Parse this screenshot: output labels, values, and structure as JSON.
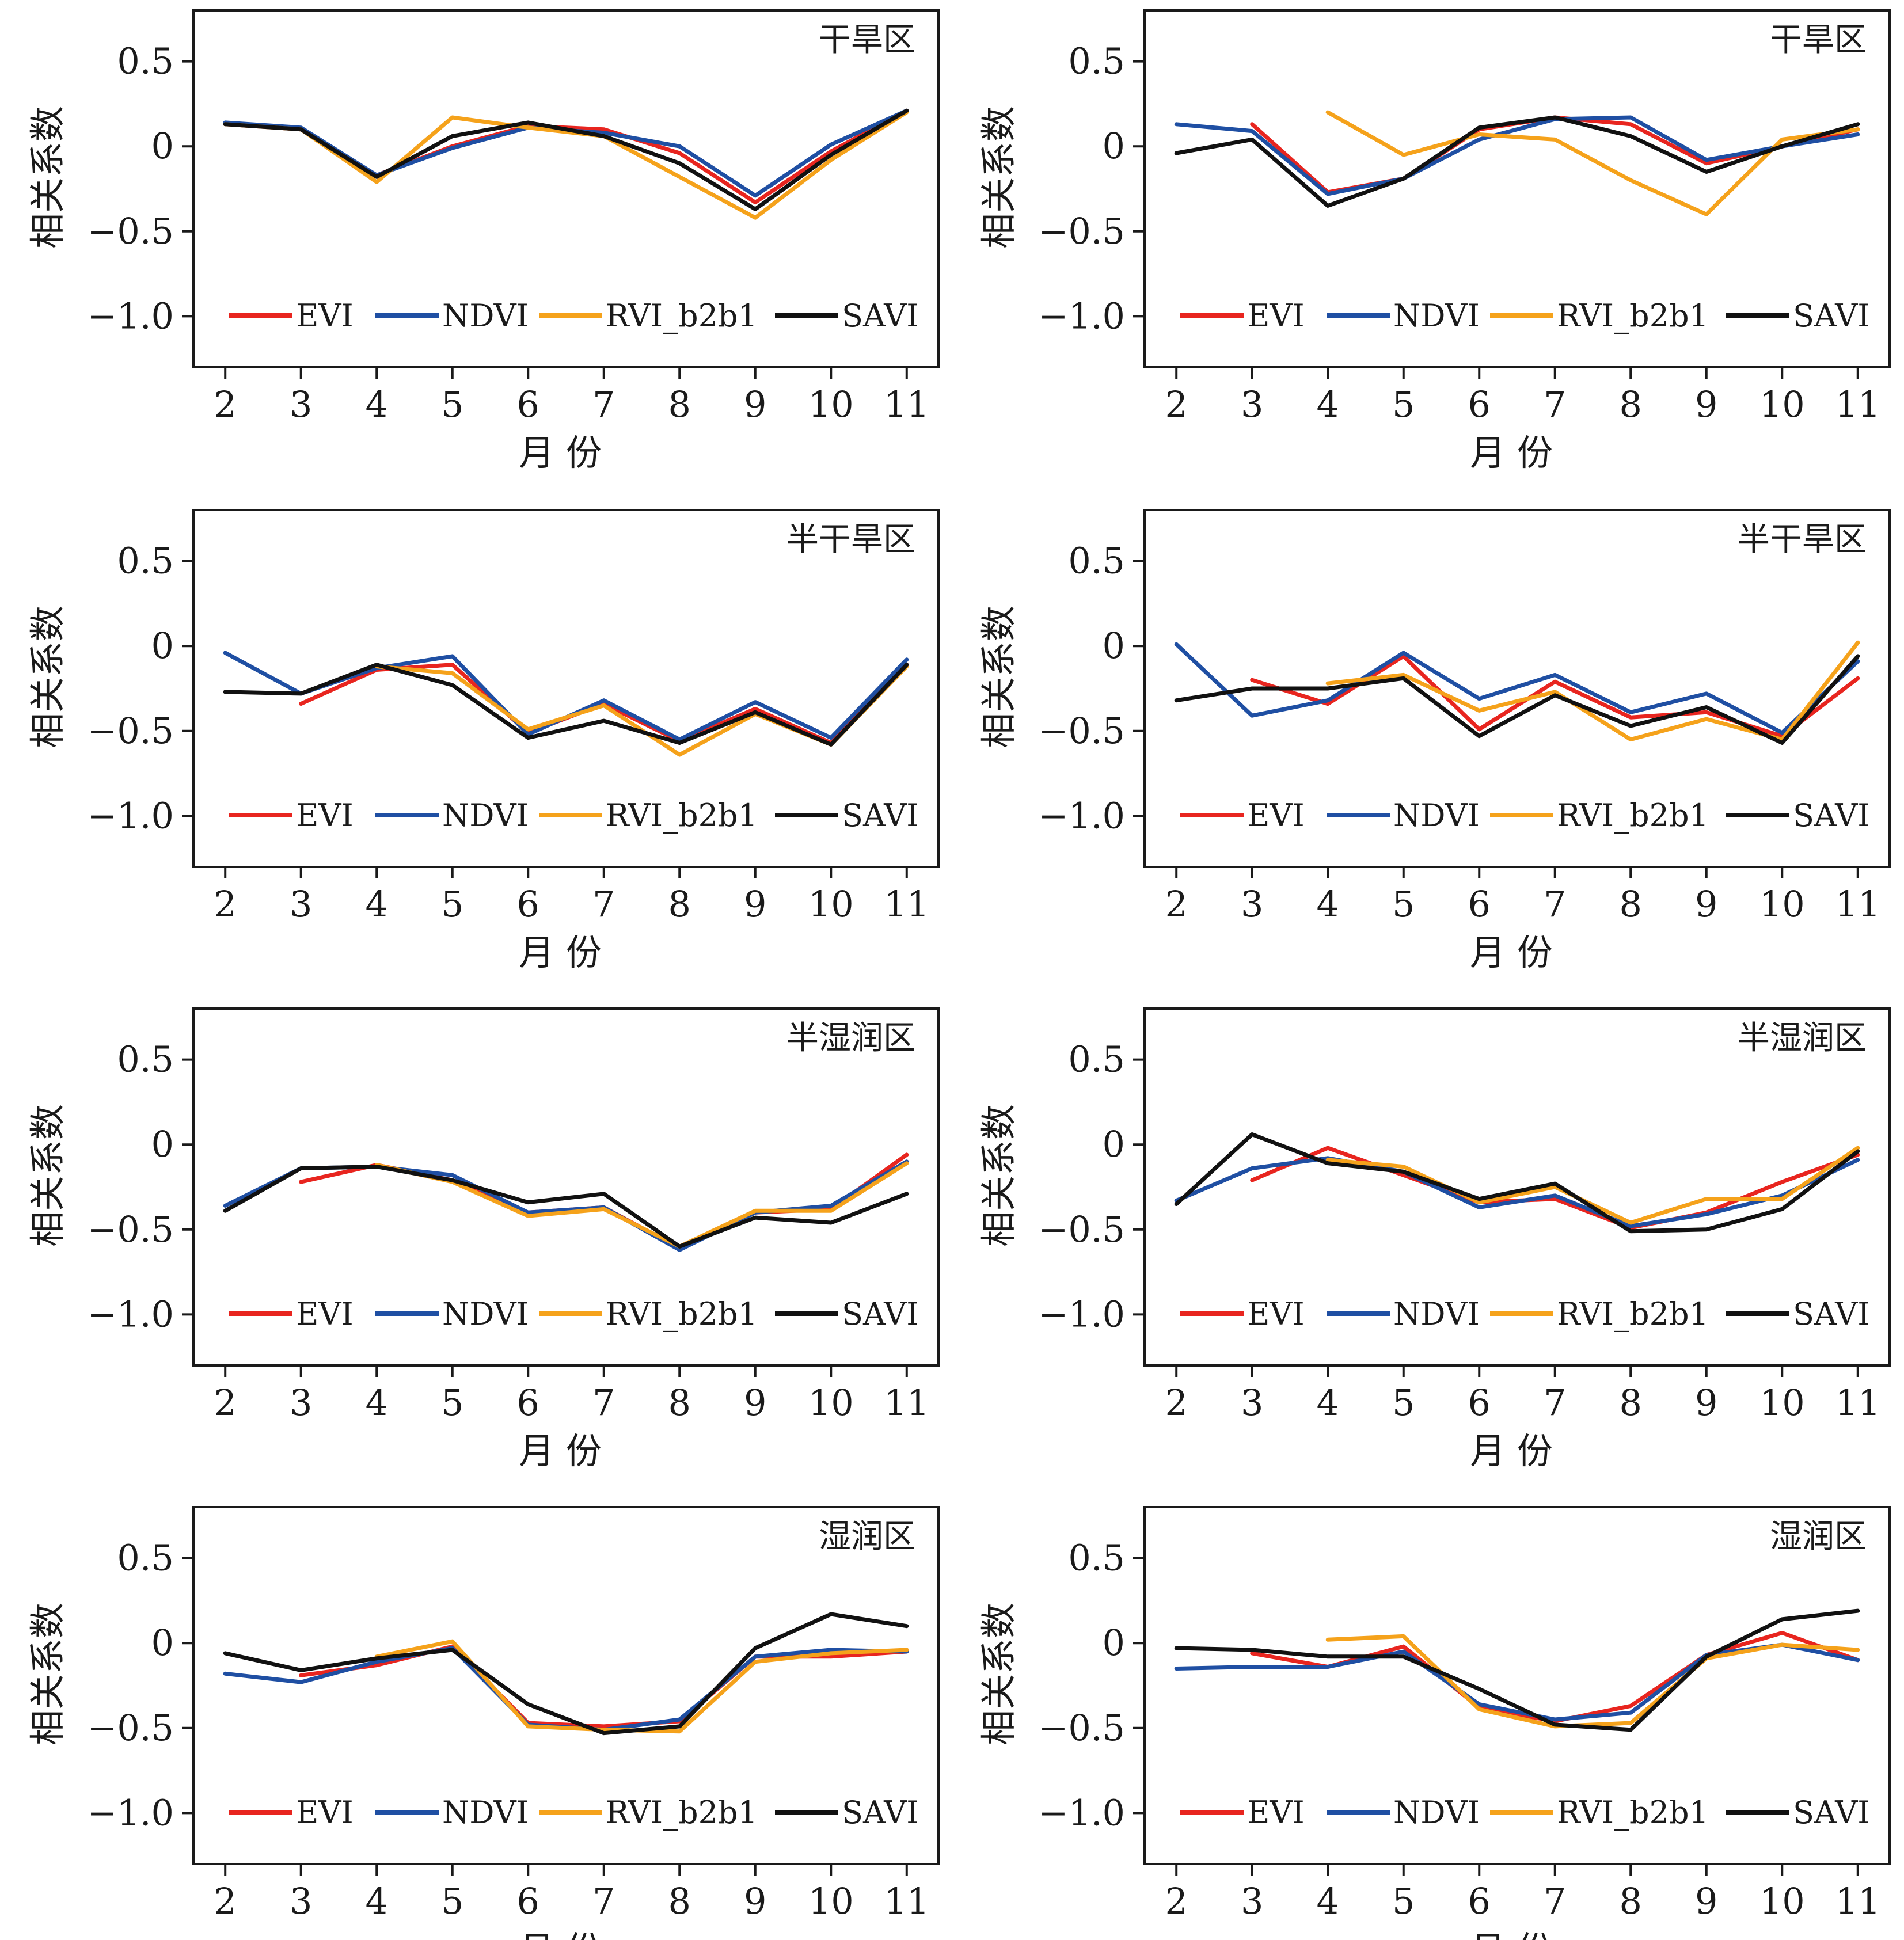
{
  "colors": {
    "EVI": "#e8251f",
    "NDVI": "#1f4fa3",
    "RVI_b2b1": "#f5a21b",
    "SAVI": "#111111"
  },
  "chart_data": [
    {
      "type": "line",
      "title": "干旱区",
      "xlabel": "月 份",
      "ylabel": "相关系数",
      "x": [
        2,
        3,
        4,
        5,
        6,
        7,
        8,
        9,
        10,
        11
      ],
      "ylim": [
        -1.3,
        0.8
      ],
      "yticks": [
        "0.5",
        "0",
        "−0.5",
        "−1.0"
      ],
      "legend": "bottom",
      "series": [
        {
          "name": "EVI",
          "values": [
            0.13,
            0.1,
            -0.17,
            0.0,
            0.12,
            0.1,
            -0.04,
            -0.33,
            -0.03,
            0.21
          ]
        },
        {
          "name": "NDVI",
          "values": [
            0.14,
            0.11,
            -0.17,
            -0.01,
            0.11,
            0.08,
            0.0,
            -0.29,
            0.01,
            0.21
          ]
        },
        {
          "name": "RVI_b2b1",
          "values": [
            0.13,
            0.1,
            -0.21,
            0.17,
            0.11,
            0.06,
            -0.18,
            -0.42,
            -0.08,
            0.2
          ]
        },
        {
          "name": "SAVI",
          "values": [
            0.13,
            0.1,
            -0.18,
            0.06,
            0.14,
            0.06,
            -0.1,
            -0.37,
            -0.05,
            0.21
          ]
        }
      ]
    },
    {
      "type": "line",
      "title": "干旱区",
      "xlabel": "月 份",
      "ylabel": "相关系数",
      "x": [
        2,
        3,
        4,
        5,
        6,
        7,
        8,
        9,
        10,
        11
      ],
      "ylim": [
        -1.3,
        0.8
      ],
      "yticks": [
        "0.5",
        "0",
        "−0.5",
        "−1.0"
      ],
      "legend": "bottom",
      "series": [
        {
          "name": "EVI",
          "values": [
            null,
            0.13,
            -0.27,
            -0.19,
            0.1,
            0.17,
            0.13,
            -0.1,
            0.0,
            0.1
          ]
        },
        {
          "name": "NDVI",
          "values": [
            0.13,
            0.09,
            -0.28,
            -0.19,
            0.04,
            0.16,
            0.17,
            -0.08,
            0.0,
            0.07
          ]
        },
        {
          "name": "RVI_b2b1",
          "values": [
            null,
            null,
            0.2,
            -0.05,
            0.07,
            0.04,
            -0.2,
            -0.4,
            0.04,
            0.1
          ]
        },
        {
          "name": "SAVI",
          "values": [
            -0.04,
            0.04,
            -0.35,
            -0.19,
            0.11,
            0.17,
            0.06,
            -0.15,
            0.0,
            0.13
          ]
        }
      ]
    },
    {
      "type": "line",
      "title": "半干旱区",
      "xlabel": "月 份",
      "ylabel": "相关系数",
      "x": [
        2,
        3,
        4,
        5,
        6,
        7,
        8,
        9,
        10,
        11
      ],
      "ylim": [
        -1.3,
        0.8
      ],
      "yticks": [
        "0.5",
        "0",
        "−0.5",
        "−1.0"
      ],
      "legend": "bottom",
      "series": [
        {
          "name": "EVI",
          "values": [
            null,
            -0.34,
            -0.14,
            -0.11,
            -0.51,
            -0.34,
            -0.56,
            -0.37,
            -0.57,
            -0.11
          ]
        },
        {
          "name": "NDVI",
          "values": [
            -0.04,
            -0.28,
            -0.13,
            -0.06,
            -0.52,
            -0.32,
            -0.55,
            -0.33,
            -0.54,
            -0.08
          ]
        },
        {
          "name": "RVI_b2b1",
          "values": [
            null,
            null,
            -0.12,
            -0.16,
            -0.49,
            -0.35,
            -0.64,
            -0.4,
            -0.58,
            -0.12
          ]
        },
        {
          "name": "SAVI",
          "values": [
            -0.27,
            -0.28,
            -0.11,
            -0.23,
            -0.54,
            -0.44,
            -0.57,
            -0.39,
            -0.58,
            -0.11
          ]
        }
      ]
    },
    {
      "type": "line",
      "title": "半干旱区",
      "xlabel": "月 份",
      "ylabel": "相关系数",
      "x": [
        2,
        3,
        4,
        5,
        6,
        7,
        8,
        9,
        10,
        11
      ],
      "ylim": [
        -1.3,
        0.8
      ],
      "yticks": [
        "0.5",
        "0",
        "−0.5",
        "−1.0"
      ],
      "legend": "bottom",
      "series": [
        {
          "name": "EVI",
          "values": [
            null,
            -0.2,
            -0.34,
            -0.06,
            -0.49,
            -0.21,
            -0.42,
            -0.39,
            -0.53,
            -0.19
          ]
        },
        {
          "name": "NDVI",
          "values": [
            0.01,
            -0.41,
            -0.32,
            -0.04,
            -0.31,
            -0.17,
            -0.39,
            -0.28,
            -0.51,
            -0.09
          ]
        },
        {
          "name": "RVI_b2b1",
          "values": [
            null,
            null,
            -0.22,
            -0.17,
            -0.38,
            -0.27,
            -0.55,
            -0.43,
            -0.55,
            0.02
          ]
        },
        {
          "name": "SAVI",
          "values": [
            -0.32,
            -0.25,
            -0.25,
            -0.19,
            -0.53,
            -0.29,
            -0.47,
            -0.36,
            -0.57,
            -0.06
          ]
        }
      ]
    },
    {
      "type": "line",
      "title": "半湿润区",
      "xlabel": "月 份",
      "ylabel": "相关系数",
      "x": [
        2,
        3,
        4,
        5,
        6,
        7,
        8,
        9,
        10,
        11
      ],
      "ylim": [
        -1.3,
        0.8
      ],
      "yticks": [
        "0.5",
        "0",
        "−0.5",
        "−1.0"
      ],
      "legend": "bottom",
      "series": [
        {
          "name": "EVI",
          "values": [
            null,
            -0.22,
            -0.12,
            -0.21,
            -0.4,
            -0.37,
            -0.61,
            -0.4,
            -0.38,
            -0.06
          ]
        },
        {
          "name": "NDVI",
          "values": [
            -0.36,
            -0.14,
            -0.13,
            -0.18,
            -0.4,
            -0.37,
            -0.62,
            -0.4,
            -0.36,
            -0.1
          ]
        },
        {
          "name": "RVI_b2b1",
          "values": [
            null,
            null,
            -0.12,
            -0.22,
            -0.42,
            -0.38,
            -0.6,
            -0.39,
            -0.39,
            -0.11
          ]
        },
        {
          "name": "SAVI",
          "values": [
            -0.39,
            -0.14,
            -0.13,
            -0.21,
            -0.34,
            -0.29,
            -0.6,
            -0.43,
            -0.46,
            -0.29
          ]
        }
      ]
    },
    {
      "type": "line",
      "title": "半湿润区",
      "xlabel": "月 份",
      "ylabel": "相关系数",
      "x": [
        2,
        3,
        4,
        5,
        6,
        7,
        8,
        9,
        10,
        11
      ],
      "ylim": [
        -1.3,
        0.8
      ],
      "yticks": [
        "0.5",
        "0",
        "−0.5",
        "−1.0"
      ],
      "legend": "bottom",
      "series": [
        {
          "name": "EVI",
          "values": [
            null,
            -0.21,
            -0.02,
            -0.18,
            -0.34,
            -0.32,
            -0.49,
            -0.4,
            -0.22,
            -0.06
          ]
        },
        {
          "name": "NDVI",
          "values": [
            -0.33,
            -0.14,
            -0.08,
            -0.16,
            -0.37,
            -0.3,
            -0.48,
            -0.41,
            -0.3,
            -0.09
          ]
        },
        {
          "name": "RVI_b2b1",
          "values": [
            null,
            null,
            -0.09,
            -0.13,
            -0.34,
            -0.25,
            -0.46,
            -0.32,
            -0.32,
            -0.02
          ]
        },
        {
          "name": "SAVI",
          "values": [
            -0.35,
            0.06,
            -0.11,
            -0.16,
            -0.32,
            -0.23,
            -0.51,
            -0.5,
            -0.38,
            -0.04
          ]
        }
      ]
    },
    {
      "type": "line",
      "title": "湿润区",
      "xlabel": "月 份",
      "ylabel": "相关系数",
      "x": [
        2,
        3,
        4,
        5,
        6,
        7,
        8,
        9,
        10,
        11
      ],
      "ylim": [
        -1.3,
        0.8
      ],
      "yticks": [
        "0.5",
        "0",
        "−0.5",
        "−1.0"
      ],
      "legend": "bottom",
      "series": [
        {
          "name": "EVI",
          "values": [
            null,
            -0.19,
            -0.13,
            -0.02,
            -0.47,
            -0.49,
            -0.46,
            -0.08,
            -0.08,
            -0.05
          ]
        },
        {
          "name": "NDVI",
          "values": [
            -0.18,
            -0.23,
            -0.11,
            -0.03,
            -0.48,
            -0.51,
            -0.45,
            -0.08,
            -0.04,
            -0.05
          ]
        },
        {
          "name": "RVI_b2b1",
          "values": [
            null,
            null,
            -0.08,
            0.01,
            -0.49,
            -0.51,
            -0.52,
            -0.11,
            -0.06,
            -0.04
          ]
        },
        {
          "name": "SAVI",
          "values": [
            -0.06,
            -0.16,
            -0.09,
            -0.04,
            -0.36,
            -0.53,
            -0.49,
            -0.03,
            0.17,
            0.1
          ]
        }
      ]
    },
    {
      "type": "line",
      "title": "湿润区",
      "xlabel": "月 份",
      "ylabel": "相关系数",
      "x": [
        2,
        3,
        4,
        5,
        6,
        7,
        8,
        9,
        10,
        11
      ],
      "ylim": [
        -1.3,
        0.8
      ],
      "yticks": [
        "0.5",
        "0",
        "−0.5",
        "−1.0"
      ],
      "legend": "bottom",
      "series": [
        {
          "name": "EVI",
          "values": [
            null,
            -0.06,
            -0.14,
            -0.02,
            -0.38,
            -0.46,
            -0.37,
            -0.07,
            0.06,
            -0.1
          ]
        },
        {
          "name": "NDVI",
          "values": [
            -0.15,
            -0.14,
            -0.14,
            -0.05,
            -0.36,
            -0.45,
            -0.41,
            -0.07,
            -0.01,
            -0.1
          ]
        },
        {
          "name": "RVI_b2b1",
          "values": [
            null,
            null,
            0.02,
            0.04,
            -0.39,
            -0.49,
            -0.47,
            -0.09,
            -0.01,
            -0.04
          ]
        },
        {
          "name": "SAVI",
          "values": [
            -0.03,
            -0.04,
            -0.08,
            -0.08,
            -0.27,
            -0.48,
            -0.51,
            -0.08,
            0.14,
            0.19
          ]
        }
      ]
    }
  ]
}
